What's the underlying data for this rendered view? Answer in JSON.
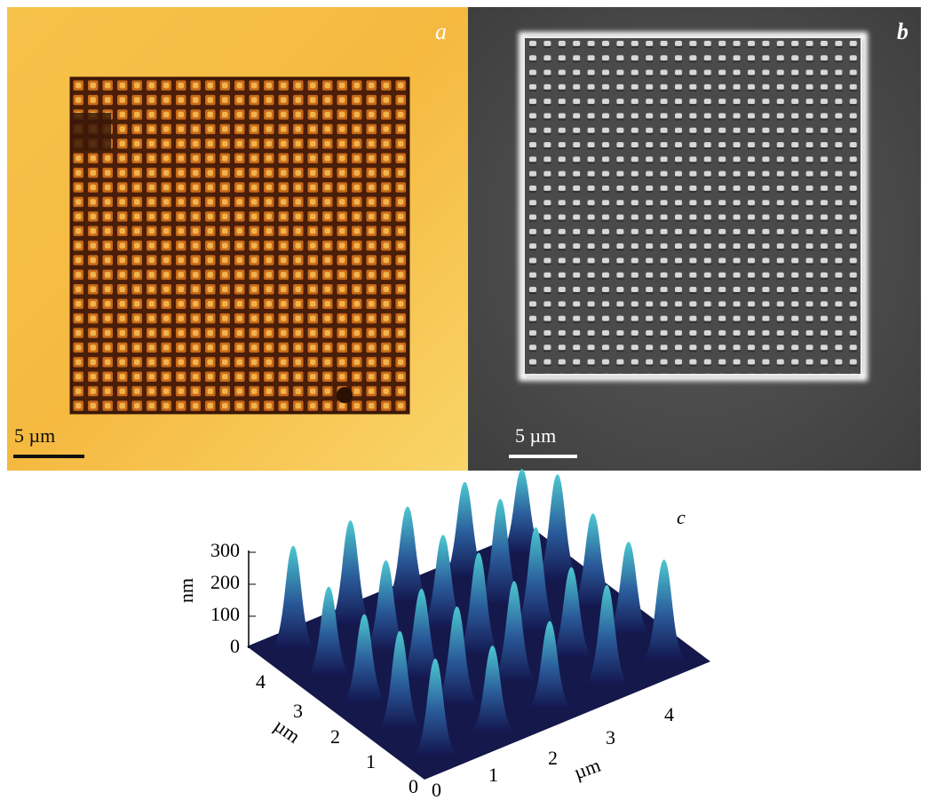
{
  "panels": [
    {
      "label": "a",
      "scale_bar": "5 µm"
    },
    {
      "label": "b",
      "scale_bar": "5 µm"
    },
    {
      "label": "c",
      "z_axis": {
        "label": "nm",
        "ticks": [
          "0",
          "100",
          "200",
          "300"
        ]
      },
      "y_axis": {
        "label": "µm",
        "ticks": [
          "0",
          "1",
          "2",
          "3",
          "4"
        ]
      },
      "x_axis": {
        "label": "µm",
        "ticks": [
          "0",
          "1",
          "2",
          "3",
          "4"
        ]
      }
    }
  ]
}
